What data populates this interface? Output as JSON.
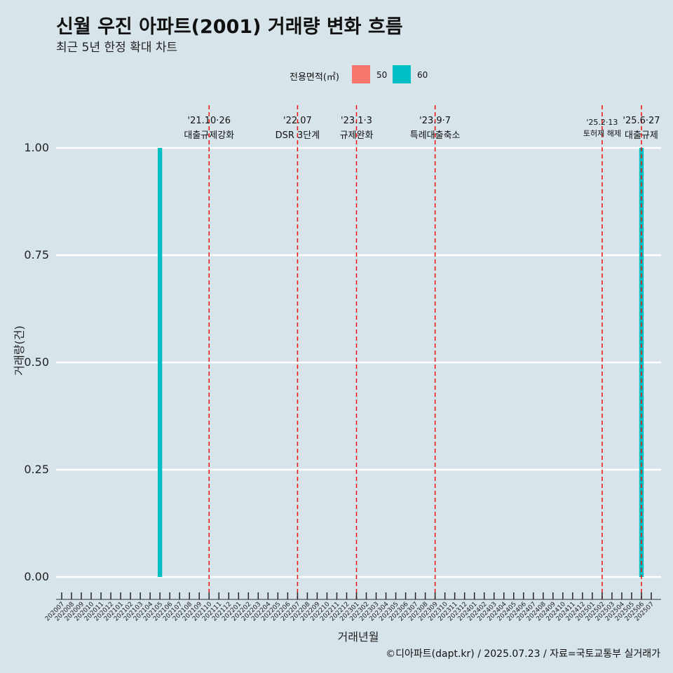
{
  "title": "신월 우진 아파트(2001) 거래량 변화 흐름",
  "subtitle": "최근 5년 한정 확대 차트",
  "caption": "©디아파트(dapt.kr) / 2025.07.23 / 자료=국토교통부 실거래가",
  "legend": {
    "title": "전용면적(㎡)",
    "items": [
      {
        "label": "50",
        "color": "#f8766d"
      },
      {
        "label": "60",
        "color": "#00bfc4"
      }
    ]
  },
  "chart_data": {
    "type": "bar",
    "xlabel": "거래년월",
    "ylabel": "거래량(건)",
    "ylim": [
      0,
      1
    ],
    "yticks": [
      "0.00",
      "0.25",
      "0.50",
      "0.75",
      "1.00"
    ],
    "categories": [
      "202007",
      "202008",
      "202009",
      "202010",
      "202011",
      "202012",
      "202101",
      "202102",
      "202103",
      "202104",
      "202105",
      "202106",
      "202107",
      "202108",
      "202109",
      "202110",
      "202111",
      "202112",
      "202201",
      "202202",
      "202203",
      "202204",
      "202205",
      "202206",
      "202207",
      "202208",
      "202209",
      "202210",
      "202211",
      "202212",
      "202301",
      "202302",
      "202303",
      "202304",
      "202305",
      "202306",
      "202307",
      "202308",
      "202309",
      "202310",
      "202311",
      "202312",
      "202401",
      "202402",
      "202403",
      "202404",
      "202405",
      "202406",
      "202407",
      "202408",
      "202409",
      "202410",
      "202411",
      "202412",
      "202501",
      "202502",
      "202503",
      "202504",
      "202505",
      "202506",
      "202507"
    ],
    "series": [
      {
        "name": "50",
        "color": "#f8766d",
        "points": []
      },
      {
        "name": "60",
        "color": "#00bfc4",
        "points": [
          {
            "x": "202105",
            "y": 1
          },
          {
            "x": "202506",
            "y": 1
          }
        ]
      }
    ],
    "events": [
      {
        "x": "202110",
        "date": "'21.10·26",
        "label": "대출규제강화"
      },
      {
        "x": "202207",
        "date": "'22.07",
        "label": "DSR 3단계"
      },
      {
        "x": "202301",
        "date": "'23.1·3",
        "label": "규제완화"
      },
      {
        "x": "202309",
        "date": "'23.9·7",
        "label": "특례대출축소"
      },
      {
        "x": "202502",
        "date": "'25.2·13",
        "label": "토허제 해제"
      },
      {
        "x": "202506",
        "date": "'25.6·27",
        "label": "대출규제"
      }
    ],
    "grid": true,
    "legend_position": "top"
  }
}
